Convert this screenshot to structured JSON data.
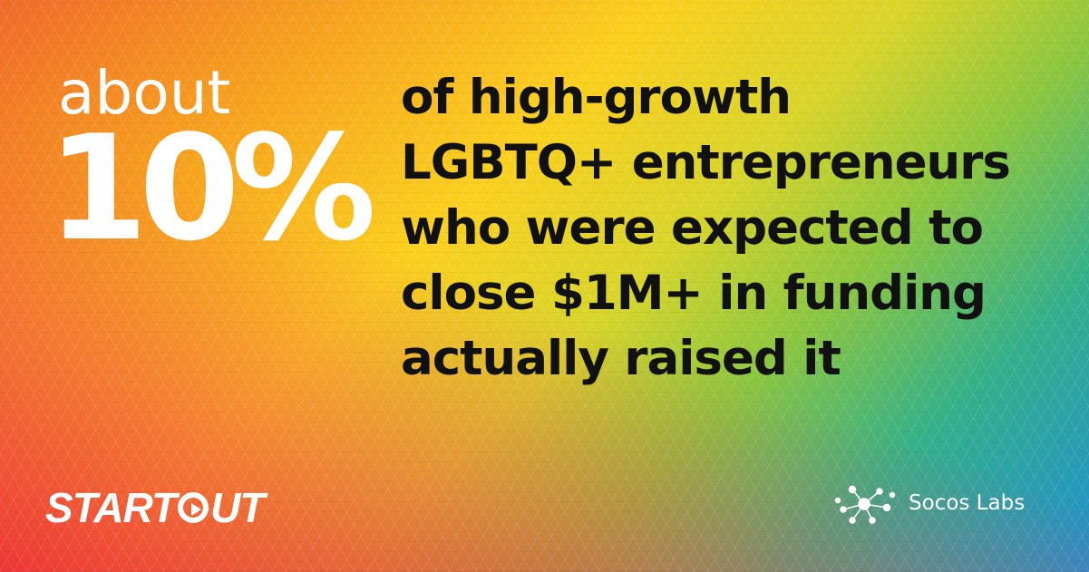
{
  "stat": {
    "prefix": "about",
    "value": "10%"
  },
  "headline": {
    "lines": [
      "of high-growth",
      "LGBTQ+ entrepreneurs",
      "who were expected to",
      "close $1M+ in funding",
      "actually raised it"
    ]
  },
  "logos": {
    "left": {
      "part1": "START",
      "part2": "UT"
    },
    "right": {
      "name": "Socos Labs",
      "icon": "network-dots-icon"
    }
  },
  "colors": {
    "text_light": "#ffffff",
    "text_dark": "#111111",
    "gradient": [
      "#ea1e3c",
      "#f06a2a",
      "#f7a51e",
      "#fbd01e",
      "#8cc63f",
      "#34b08a",
      "#1f8fd0"
    ]
  }
}
